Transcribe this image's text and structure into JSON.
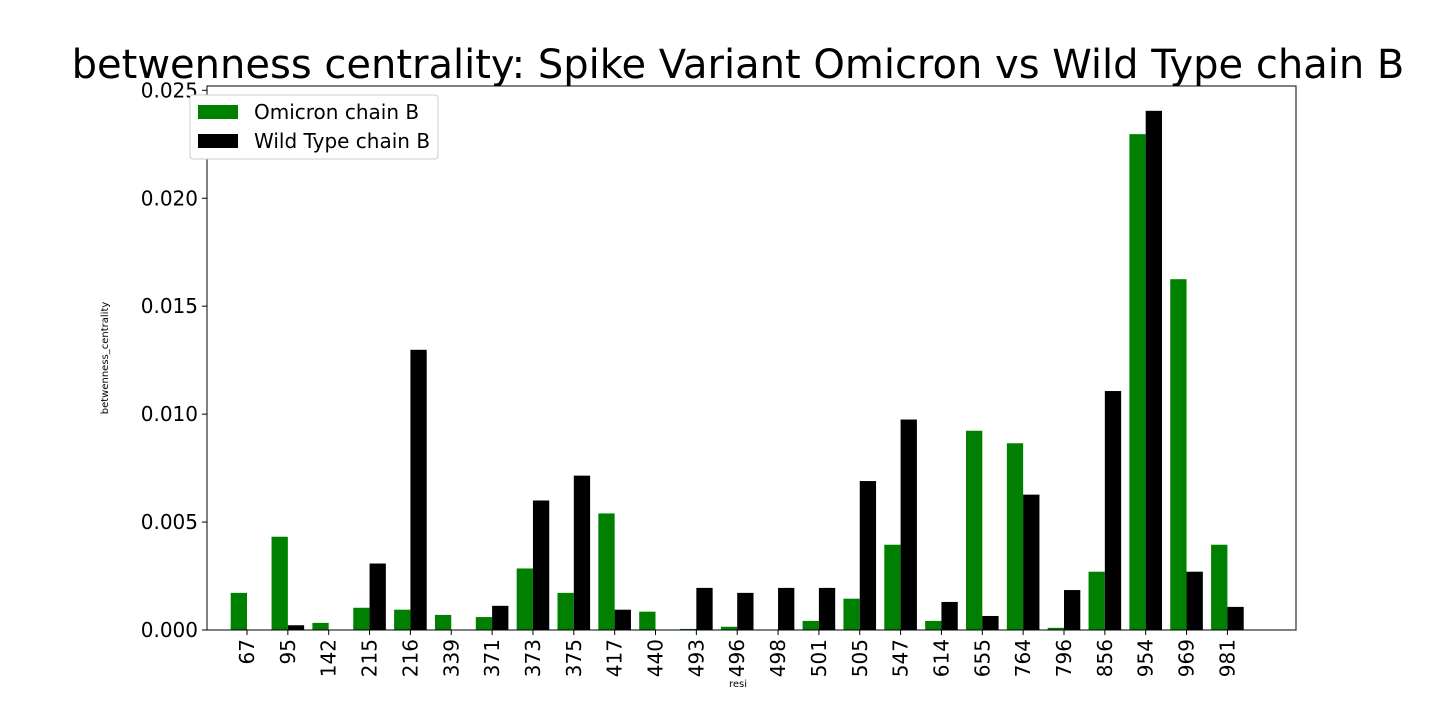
{
  "chart_data": {
    "type": "bar",
    "title": "betwenness centrality: Spike Variant Omicron vs Wild Type chain B",
    "xlabel": "resi",
    "ylabel": "betwenness_centrality",
    "categories": [
      "67",
      "95",
      "142",
      "215",
      "216",
      "339",
      "371",
      "373",
      "375",
      "417",
      "440",
      "493",
      "496",
      "498",
      "501",
      "505",
      "547",
      "614",
      "655",
      "764",
      "796",
      "856",
      "954",
      "969",
      "981"
    ],
    "series": [
      {
        "name": "Omicron chain B",
        "color": "#008000",
        "values": [
          0.00172,
          0.00432,
          0.00033,
          0.00103,
          0.00094,
          0.0007,
          0.0006,
          0.00285,
          0.00172,
          0.0054,
          0.00085,
          5e-05,
          0.00015,
          0.0,
          0.00042,
          0.00145,
          0.00395,
          0.00042,
          0.00923,
          0.00865,
          0.0001,
          0.0027,
          0.02297,
          0.01625,
          0.00395
        ]
      },
      {
        "name": "Wild Type chain B",
        "color": "#000000",
        "values": [
          0.0,
          0.00022,
          0.0,
          0.00308,
          0.01298,
          0.0,
          0.00112,
          0.006,
          0.00715,
          0.00094,
          0.0,
          0.00195,
          0.00172,
          0.00195,
          0.00195,
          0.0069,
          0.00975,
          0.0013,
          0.00065,
          0.00627,
          0.00185,
          0.01107,
          0.02405,
          0.0027,
          0.00107
        ]
      }
    ],
    "ylim": [
      0,
      0.0252
    ],
    "yticks": [
      "0.000",
      "0.005",
      "0.010",
      "0.015",
      "0.020",
      "0.025"
    ],
    "ytick_values": [
      0,
      0.005,
      0.01,
      0.015,
      0.02,
      0.025
    ],
    "legend_position": "upper left",
    "grid": false
  }
}
